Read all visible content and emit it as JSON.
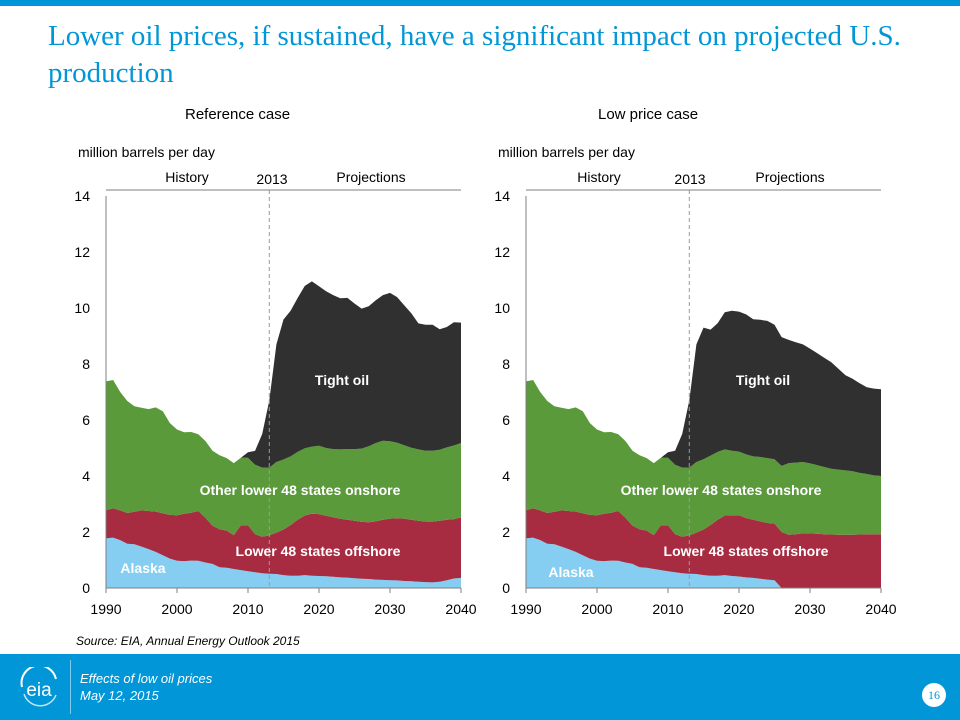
{
  "slide": {
    "title": "Lower oil prices, if sustained, have a significant impact on projected U.S. production",
    "source": "Source:  EIA, Annual Energy Outlook 2015"
  },
  "footer": {
    "logo_text": "eia",
    "line1": "Effects of low oil prices",
    "line2": "May 12, 2015",
    "page_number": "16"
  },
  "colors": {
    "alaska": "#86cef1",
    "offshore": "#a72c42",
    "onshore": "#5a9a3a",
    "tight": "#303030",
    "brand": "#0096d7"
  },
  "chart_data": [
    {
      "type": "area",
      "stacked": true,
      "title": "Reference case",
      "ylabel": "million barrels per day",
      "ylim": [
        0,
        14
      ],
      "xlim": [
        1990,
        2040
      ],
      "yticks": [
        "0",
        "2",
        "4",
        "6",
        "8",
        "10",
        "12",
        "14"
      ],
      "xticks": [
        "1990",
        "2000",
        "2010",
        "2020",
        "2030",
        "2040"
      ],
      "divider": {
        "x": 2013,
        "label": "2013",
        "left_label": "History",
        "right_label": "Projections"
      },
      "grid": false,
      "x": [
        1990,
        1991,
        1992,
        1993,
        1994,
        1995,
        1996,
        1997,
        1998,
        1999,
        2000,
        2001,
        2002,
        2003,
        2004,
        2005,
        2006,
        2007,
        2008,
        2009,
        2010,
        2011,
        2012,
        2013,
        2014,
        2015,
        2016,
        2017,
        2018,
        2019,
        2020,
        2021,
        2022,
        2023,
        2024,
        2025,
        2026,
        2027,
        2028,
        2029,
        2030,
        2031,
        2032,
        2033,
        2034,
        2035,
        2036,
        2037,
        2038,
        2039,
        2040
      ],
      "series": [
        {
          "name": "Alaska",
          "label_text": "Alaska",
          "values": [
            1.77,
            1.8,
            1.71,
            1.58,
            1.56,
            1.48,
            1.39,
            1.29,
            1.17,
            1.05,
            0.97,
            0.96,
            0.98,
            0.97,
            0.91,
            0.86,
            0.74,
            0.72,
            0.68,
            0.64,
            0.6,
            0.56,
            0.53,
            0.51,
            0.5,
            0.46,
            0.44,
            0.44,
            0.46,
            0.44,
            0.43,
            0.42,
            0.4,
            0.38,
            0.37,
            0.35,
            0.33,
            0.32,
            0.3,
            0.29,
            0.28,
            0.27,
            0.25,
            0.24,
            0.22,
            0.21,
            0.2,
            0.22,
            0.28,
            0.34,
            0.36
          ]
        },
        {
          "name": "Lower 48 states offshore",
          "label_text": "Lower 48 states offshore",
          "values": [
            1.01,
            1.05,
            1.06,
            1.1,
            1.16,
            1.29,
            1.36,
            1.44,
            1.5,
            1.56,
            1.63,
            1.69,
            1.71,
            1.78,
            1.6,
            1.37,
            1.36,
            1.33,
            1.21,
            1.6,
            1.64,
            1.36,
            1.3,
            1.37,
            1.48,
            1.63,
            1.81,
            2.0,
            2.13,
            2.21,
            2.21,
            2.16,
            2.13,
            2.09,
            2.07,
            2.05,
            2.03,
            2.03,
            2.08,
            2.15,
            2.2,
            2.22,
            2.23,
            2.2,
            2.18,
            2.16,
            2.17,
            2.18,
            2.16,
            2.12,
            2.16
          ]
        },
        {
          "name": "Other lower 48 states onshore",
          "label_text": "Other lower 48 states onshore",
          "values": [
            4.6,
            4.58,
            4.23,
            4.0,
            3.77,
            3.67,
            3.64,
            3.72,
            3.64,
            3.28,
            3.06,
            2.91,
            2.88,
            2.74,
            2.74,
            2.67,
            2.64,
            2.59,
            2.57,
            2.41,
            2.41,
            2.48,
            2.47,
            2.42,
            2.52,
            2.5,
            2.45,
            2.42,
            2.4,
            2.4,
            2.44,
            2.42,
            2.43,
            2.48,
            2.52,
            2.56,
            2.62,
            2.71,
            2.8,
            2.82,
            2.76,
            2.7,
            2.62,
            2.57,
            2.55,
            2.53,
            2.53,
            2.54,
            2.58,
            2.63,
            2.66
          ]
        },
        {
          "name": "Tight oil",
          "label_text": "Tight oil",
          "values": [
            0,
            0,
            0,
            0,
            0,
            0,
            0,
            0,
            0,
            0,
            0,
            0,
            0,
            0,
            0,
            0,
            0,
            0,
            0,
            0,
            0.2,
            0.5,
            1.2,
            2.4,
            4.2,
            5.0,
            5.2,
            5.5,
            5.8,
            5.9,
            5.7,
            5.6,
            5.5,
            5.4,
            5.4,
            5.2,
            5.0,
            5.0,
            5.1,
            5.2,
            5.3,
            5.2,
            5.0,
            4.8,
            4.5,
            4.5,
            4.5,
            4.3,
            4.3,
            4.4,
            4.3
          ]
        }
      ]
    },
    {
      "type": "area",
      "stacked": true,
      "title": "Low price case",
      "ylabel": "million barrels per day",
      "ylim": [
        0,
        14
      ],
      "xlim": [
        1990,
        2040
      ],
      "yticks": [
        "0",
        "2",
        "4",
        "6",
        "8",
        "10",
        "12",
        "14"
      ],
      "xticks": [
        "1990",
        "2000",
        "2010",
        "2020",
        "2030",
        "2040"
      ],
      "divider": {
        "x": 2013,
        "label": "2013",
        "left_label": "History",
        "right_label": "Projections"
      },
      "grid": false,
      "x": [
        1990,
        1991,
        1992,
        1993,
        1994,
        1995,
        1996,
        1997,
        1998,
        1999,
        2000,
        2001,
        2002,
        2003,
        2004,
        2005,
        2006,
        2007,
        2008,
        2009,
        2010,
        2011,
        2012,
        2013,
        2014,
        2015,
        2016,
        2017,
        2018,
        2019,
        2020,
        2021,
        2022,
        2023,
        2024,
        2025,
        2026,
        2027,
        2028,
        2029,
        2030,
        2031,
        2032,
        2033,
        2034,
        2035,
        2036,
        2037,
        2038,
        2039,
        2040
      ],
      "series": [
        {
          "name": "Alaska",
          "label_text": "Alaska",
          "values": [
            1.77,
            1.8,
            1.71,
            1.58,
            1.56,
            1.48,
            1.39,
            1.29,
            1.17,
            1.05,
            0.97,
            0.96,
            0.98,
            0.97,
            0.91,
            0.86,
            0.74,
            0.72,
            0.68,
            0.64,
            0.6,
            0.56,
            0.53,
            0.51,
            0.5,
            0.46,
            0.44,
            0.44,
            0.46,
            0.43,
            0.41,
            0.38,
            0.36,
            0.33,
            0.3,
            0.28,
            0,
            0,
            0,
            0,
            0,
            0,
            0,
            0,
            0,
            0,
            0,
            0,
            0,
            0,
            0
          ]
        },
        {
          "name": "Lower 48 states offshore",
          "label_text": "Lower 48 states offshore",
          "values": [
            1.01,
            1.05,
            1.06,
            1.1,
            1.16,
            1.29,
            1.36,
            1.44,
            1.5,
            1.56,
            1.63,
            1.69,
            1.71,
            1.78,
            1.6,
            1.37,
            1.36,
            1.33,
            1.21,
            1.6,
            1.64,
            1.36,
            1.3,
            1.37,
            1.48,
            1.63,
            1.81,
            2.0,
            2.13,
            2.17,
            2.19,
            2.12,
            2.08,
            2.05,
            2.02,
            2.02,
            2.0,
            1.9,
            1.92,
            1.95,
            1.95,
            1.94,
            1.92,
            1.91,
            1.9,
            1.9,
            1.9,
            1.91,
            1.92,
            1.92,
            1.92
          ]
        },
        {
          "name": "Other lower 48 states onshore",
          "label_text": "Other lower 48 states onshore",
          "values": [
            4.6,
            4.58,
            4.23,
            4.0,
            3.77,
            3.67,
            3.64,
            3.72,
            3.64,
            3.28,
            3.06,
            2.91,
            2.88,
            2.74,
            2.74,
            2.67,
            2.64,
            2.59,
            2.57,
            2.41,
            2.41,
            2.48,
            2.47,
            2.42,
            2.52,
            2.51,
            2.48,
            2.42,
            2.36,
            2.3,
            2.27,
            2.27,
            2.26,
            2.3,
            2.32,
            2.3,
            2.36,
            2.56,
            2.56,
            2.55,
            2.5,
            2.45,
            2.4,
            2.35,
            2.33,
            2.3,
            2.27,
            2.2,
            2.15,
            2.1,
            2.08
          ]
        },
        {
          "name": "Tight oil",
          "label_text": "Tight oil",
          "values": [
            0,
            0,
            0,
            0,
            0,
            0,
            0,
            0,
            0,
            0,
            0,
            0,
            0,
            0,
            0,
            0,
            0,
            0,
            0,
            0,
            0.2,
            0.5,
            1.2,
            2.4,
            4.2,
            4.7,
            4.5,
            4.6,
            4.9,
            5.0,
            5.0,
            5.0,
            4.9,
            4.9,
            4.9,
            4.8,
            4.6,
            4.4,
            4.3,
            4.2,
            4.1,
            4.0,
            3.9,
            3.8,
            3.6,
            3.4,
            3.3,
            3.2,
            3.1,
            3.1,
            3.1
          ]
        }
      ]
    }
  ]
}
